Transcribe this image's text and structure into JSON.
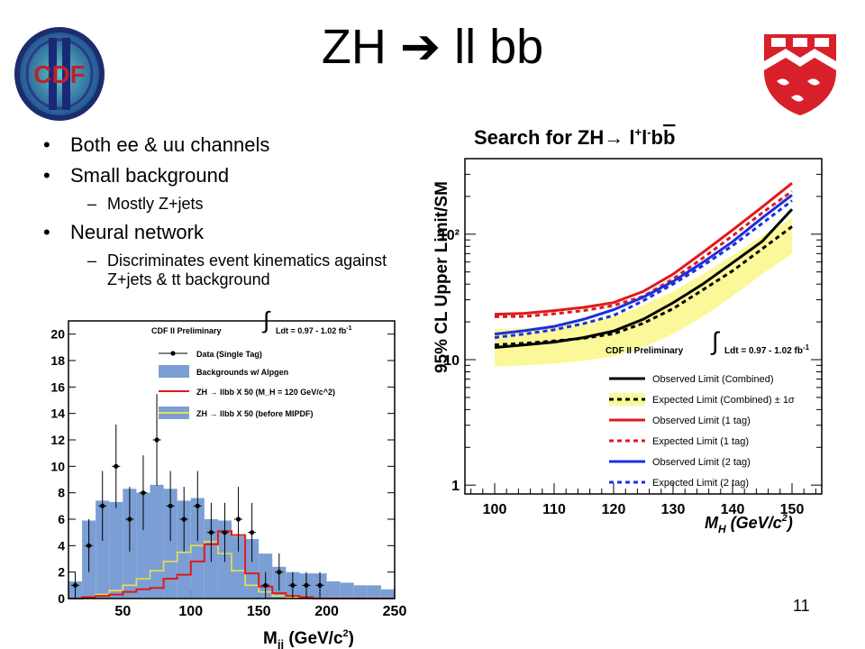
{
  "slide": {
    "title": "ZH ➔ ll bb",
    "page_number": "11",
    "bullets": [
      {
        "level": 1,
        "text": "Both ee & uu channels"
      },
      {
        "level": 1,
        "text": "Small background"
      },
      {
        "level": 2,
        "text": "Mostly Z+jets"
      },
      {
        "level": 1,
        "text": "Neural network"
      },
      {
        "level": 2,
        "text": "Discriminates event kinematics against Z+jets & tt background"
      }
    ]
  },
  "logos": {
    "left": {
      "icon": "cdf-logo",
      "text": "CDF"
    },
    "right": {
      "icon": "mcgill-crest"
    }
  },
  "chart_data": [
    {
      "type": "bar",
      "xlabel": "M_jj (GeV/c^2)",
      "xlim": [
        10,
        250
      ],
      "ylim": [
        0,
        21
      ],
      "x_ticks": [
        "50",
        "100",
        "150",
        "200",
        "250"
      ],
      "y_ticks": [
        "0",
        "2",
        "4",
        "6",
        "8",
        "10",
        "12",
        "14",
        "16",
        "18",
        "20"
      ],
      "annotation": "CDF II Preliminary",
      "lumi": "Ldt = 0.97 - 1.02 fb",
      "lumi_sup": "-1",
      "legend": [
        {
          "label": "Data (Single Tag)",
          "style": "points",
          "color": "#000000"
        },
        {
          "label": "Backgrounds w/ Alpgen",
          "style": "fill",
          "color": "#7b9fd4"
        },
        {
          "label": "ZH → llbb X 50 (M_H = 120 GeV/c^2)",
          "style": "line",
          "color": "#e0191b"
        },
        {
          "label": "ZH → llbb X 50 (before MIPDF)",
          "style": "fill-line",
          "color": "#e8e050"
        }
      ],
      "bin_edges": [
        10,
        20,
        30,
        40,
        50,
        60,
        70,
        80,
        90,
        100,
        110,
        120,
        130,
        140,
        150,
        160,
        170,
        180,
        190,
        200,
        210,
        220,
        230,
        240,
        250
      ],
      "series": [
        {
          "name": "Backgrounds w/ Alpgen",
          "values": [
            1.3,
            5.9,
            7.4,
            7.3,
            8.3,
            8.0,
            8.6,
            8.3,
            7.4,
            7.6,
            6.0,
            5.9,
            4.7,
            4.5,
            3.4,
            2.4,
            2.0,
            1.9,
            1.9,
            1.3,
            1.2,
            1.0,
            1.0,
            0.7
          ]
        },
        {
          "name": "ZH → llbb X 50 (M_H = 120 GeV/c^2)",
          "values": [
            0.0,
            0.1,
            0.2,
            0.3,
            0.5,
            0.7,
            0.8,
            1.5,
            1.8,
            2.8,
            4.1,
            5.1,
            4.8,
            1.9,
            0.9,
            0.4,
            0.2,
            0.1,
            0.0,
            0.0,
            0.0,
            0.0,
            0.0,
            0.0
          ]
        },
        {
          "name": "ZH → llbb X 50 (before MIPDF)",
          "values": [
            0.0,
            0.1,
            0.3,
            0.6,
            1.0,
            1.5,
            2.1,
            2.8,
            3.5,
            4.0,
            4.3,
            3.4,
            2.1,
            1.0,
            0.5,
            0.2,
            0.1,
            0.0,
            0.0,
            0.0,
            0.0,
            0.0,
            0.0,
            0.0
          ]
        },
        {
          "name": "Data (Single Tag)",
          "x": [
            15,
            25,
            35,
            45,
            55,
            65,
            75,
            85,
            95,
            105,
            115,
            125,
            135,
            145,
            155,
            165,
            175,
            185,
            195,
            205,
            215,
            225,
            235,
            245
          ],
          "values": [
            1,
            4,
            7,
            10,
            6,
            8,
            12,
            7,
            6,
            7,
            5,
            5,
            6,
            5,
            1,
            2,
            1,
            1,
            1,
            0,
            0,
            0,
            0,
            0
          ]
        }
      ]
    },
    {
      "type": "line",
      "title": "Search for ZH→ l⁺l⁻ b̅b",
      "xlabel": "M_H (GeV/c^2)",
      "ylabel": "95% CL Upper Limit/SM",
      "xlim": [
        95,
        155
      ],
      "ylim": [
        0.85,
        400
      ],
      "yscale": "log",
      "x_ticks": [
        "100",
        "110",
        "120",
        "130",
        "140",
        "150"
      ],
      "y_ticks": [
        "1",
        "10",
        "10²"
      ],
      "annotation": "CDF II Preliminary",
      "lumi": "Ldt = 0.97 - 1.02 fb",
      "lumi_sup": "-1",
      "x": [
        100,
        105,
        110,
        115,
        120,
        125,
        130,
        135,
        140,
        145,
        150
      ],
      "band": {
        "name": "Expected Limit (Combined) ± 1σ",
        "lower": [
          8.8,
          9.0,
          9.3,
          9.8,
          10.6,
          12.5,
          16,
          22,
          32,
          48,
          70
        ],
        "upper": [
          17.5,
          17.8,
          18.5,
          19.8,
          22,
          27,
          35,
          48,
          68,
          97,
          135
        ],
        "color": "#fbf89a"
      },
      "series": [
        {
          "name": "Observed Limit (Combined)",
          "values": [
            12.5,
            13.1,
            13.8,
            15.0,
            16.9,
            21.0,
            28.4,
            40.0,
            59.1,
            87.7,
            158
          ],
          "color": "#000000",
          "dash": "solid"
        },
        {
          "name": "Expected Limit (Combined)",
          "values": [
            13.1,
            13.5,
            14.1,
            14.8,
            16.1,
            19.5,
            25.5,
            36.0,
            51.0,
            76.5,
            115
          ],
          "color": "#000000",
          "dash": "dot"
        },
        {
          "name": "Observed Limit (1 tag)",
          "values": [
            23.0,
            23.4,
            24.6,
            26.1,
            28.5,
            35.0,
            48.0,
            71.5,
            108,
            165,
            255
          ],
          "color": "#e0191b",
          "dash": "solid"
        },
        {
          "name": "Expected Limit (1 tag)",
          "values": [
            22.0,
            22.1,
            23.2,
            24.6,
            27.0,
            32.0,
            44.0,
            64.5,
            97,
            148,
            220
          ],
          "color": "#e0191b",
          "dash": "dot"
        },
        {
          "name": "Observed Limit (2 tag)",
          "values": [
            16.0,
            17.0,
            18.4,
            21.0,
            25.0,
            31.5,
            42.0,
            59.5,
            87,
            135,
            205
          ],
          "color": "#1b2fe0",
          "dash": "solid"
        },
        {
          "name": "Expected Limit (2 tag)",
          "values": [
            15.0,
            16.0,
            17.3,
            19.4,
            22.5,
            29.5,
            40.0,
            56.0,
            81,
            122,
            185
          ],
          "color": "#1b2fe0",
          "dash": "dot"
        }
      ]
    }
  ]
}
